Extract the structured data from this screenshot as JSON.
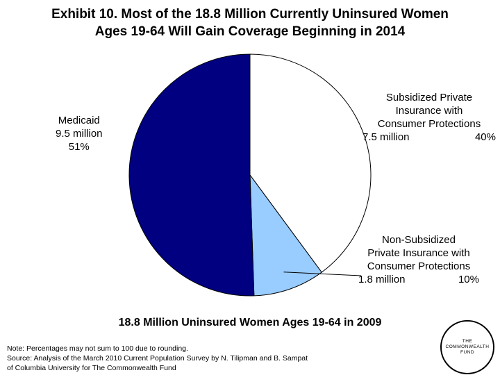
{
  "chart_data": {
    "type": "pie",
    "title_lines": [
      "Exhibit 10. Most of the 18.8 Million Currently Uninsured Women",
      "Ages 19-64 Will Gain Coverage Beginning in 2014"
    ],
    "subtitle": "18.8 Million Uninsured Women Ages 19-64 in 2009",
    "slices": [
      {
        "key": "subsidized",
        "label_lines": [
          "Subsidized Private",
          "Insurance with",
          "Consumer Protections"
        ],
        "amount": "7.5 million",
        "percent_label": "40%",
        "value": 7.5,
        "color": "#ffffff"
      },
      {
        "key": "nonsubsidized",
        "label_lines": [
          "Non-Subsidized",
          "Private Insurance with",
          "Consumer Protections"
        ],
        "amount": "1.8 million",
        "percent_label": "10%",
        "value": 1.8,
        "color": "#99ccff"
      },
      {
        "key": "medicaid",
        "label_lines": [
          "Medicaid"
        ],
        "amount": "9.5 million",
        "percent_label": "51%",
        "value": 9.5,
        "color": "#000080"
      }
    ]
  },
  "notes": {
    "line1": "Note: Percentages may not sum to 100 due to rounding.",
    "line2": "Source: Analysis of the March 2010 Current Population Survey by N. Tilipman and B. Sampat",
    "line3": "of Columbia University for The Commonwealth Fund"
  },
  "logo": {
    "line1": "THE",
    "line2": "COMMONWEALTH",
    "line3": "FUND"
  }
}
